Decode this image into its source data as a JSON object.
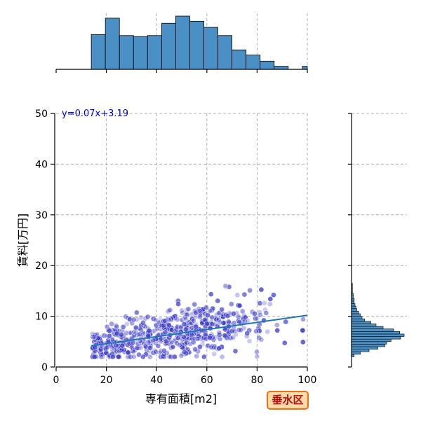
{
  "chart_data": {
    "type": "scatter",
    "xlabel": "専有面積[m2]",
    "ylabel": "賃料[万円]",
    "xlim": [
      0,
      100
    ],
    "ylim": [
      0,
      50
    ],
    "x_ticks": [
      0,
      20,
      40,
      60,
      80,
      100
    ],
    "y_ticks": [
      0,
      10,
      20,
      30,
      40,
      50
    ],
    "grid": true,
    "regression": {
      "label": "y=0.07x+3.19",
      "slope": 0.07,
      "intercept": 3.19,
      "x_range": [
        14,
        100
      ],
      "color": "#1f77b4"
    },
    "point_color": "#3d3dc8",
    "bar_color": "#4a90c4",
    "point_count_estimate": 600,
    "x_distribution": {
      "bin_edges": [
        14,
        19.6,
        25.2,
        30.8,
        36.4,
        42.0,
        47.6,
        53.2,
        58.8,
        64.4,
        70.0,
        75.6,
        81.2,
        86.8,
        92.4,
        98.0,
        100
      ],
      "counts": [
        34,
        50,
        33,
        32,
        33,
        45,
        52,
        47,
        41,
        33,
        19,
        14,
        8,
        3,
        0,
        3
      ]
    },
    "y_distribution": {
      "bin_edges": [
        2,
        2.5,
        3,
        3.5,
        4,
        4.5,
        5,
        5.5,
        6,
        6.5,
        7,
        7.5,
        8,
        8.5,
        9,
        9.5,
        10,
        10.5,
        11,
        11.5,
        12,
        12.5,
        13,
        13.5,
        14,
        14.5,
        15,
        15.5,
        16,
        16.5
      ],
      "counts": [
        3,
        10,
        20,
        30,
        38,
        40,
        45,
        56,
        60,
        55,
        48,
        36,
        28,
        22,
        15,
        12,
        10,
        8,
        6,
        5,
        4,
        3,
        3,
        2,
        2,
        1,
        1,
        1,
        1
      ]
    }
  },
  "badge": {
    "label": "垂水区"
  }
}
